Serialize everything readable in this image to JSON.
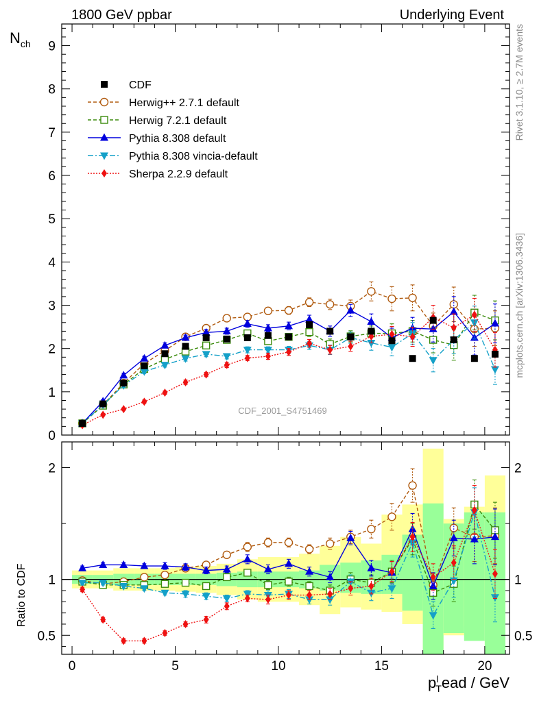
{
  "header": {
    "left": "1800 GeV ppbar",
    "right": "Underlying Event"
  },
  "side_labels": {
    "rivet": "Rivet 3.1.10, ≥ 2.7M events",
    "mcplots": "mcplots.cern.ch [arXiv:1306.3436]"
  },
  "watermark": "CDF_2001_S4751469",
  "colors": {
    "herwigpp": "#b05a0e",
    "herwig7": "#3a8a0a",
    "pythia": "#0000dd",
    "vincia": "#14a0c8",
    "sherpa": "#ee1111",
    "band_yellow": "#ffff99",
    "band_green": "#99ff99"
  },
  "chart_data": [
    {
      "type": "scatter",
      "panel": "main",
      "ylabel_main": "N",
      "ylabel_sub": "ch",
      "xlim": [
        -0.5,
        21.2
      ],
      "ylim": [
        0,
        9.5
      ],
      "yticks": [
        0,
        1,
        2,
        3,
        4,
        5,
        6,
        7,
        8,
        9
      ],
      "legend_placement": "top-left",
      "x": [
        0.5,
        1.5,
        2.5,
        3.5,
        4.5,
        5.5,
        6.5,
        7.5,
        8.5,
        9.5,
        10.5,
        11.5,
        12.5,
        13.5,
        14.5,
        15.5,
        16.5,
        17.5,
        18.5,
        19.5,
        20.5
      ],
      "series": [
        {
          "key": "cdf",
          "name": "CDF",
          "values": [
            0.27,
            0.72,
            1.2,
            1.6,
            1.88,
            2.05,
            2.25,
            2.22,
            2.25,
            2.3,
            2.27,
            2.55,
            2.4,
            2.27,
            2.4,
            2.18,
            1.77,
            2.65,
            2.2,
            1.77,
            1.87
          ]
        },
        {
          "key": "herwigpp",
          "name": "Herwig++ 2.7.1 default",
          "values": [
            0.27,
            0.7,
            1.2,
            1.65,
            1.95,
            2.27,
            2.47,
            2.7,
            2.73,
            2.87,
            2.88,
            3.07,
            3.02,
            2.98,
            3.32,
            3.15,
            3.17,
            2.52,
            3.02,
            2.45,
            2.47
          ],
          "errors": [
            0.03,
            0.04,
            0.05,
            0.05,
            0.06,
            0.06,
            0.07,
            0.07,
            0.08,
            0.08,
            0.09,
            0.1,
            0.12,
            0.14,
            0.22,
            0.28,
            0.3,
            0.3,
            0.4,
            0.4,
            0.4
          ]
        },
        {
          "key": "herwig7",
          "name": "Herwig 7.2.1 default",
          "values": [
            0.27,
            0.68,
            1.17,
            1.53,
            1.75,
            1.93,
            2.07,
            2.2,
            2.35,
            2.17,
            2.27,
            2.38,
            2.1,
            2.28,
            2.35,
            2.35,
            2.4,
            2.2,
            2.08,
            2.83,
            2.65
          ],
          "errors": [
            0.03,
            0.04,
            0.05,
            0.05,
            0.05,
            0.06,
            0.06,
            0.07,
            0.07,
            0.08,
            0.08,
            0.1,
            0.12,
            0.13,
            0.17,
            0.22,
            0.25,
            0.3,
            0.35,
            0.4,
            0.45
          ]
        },
        {
          "key": "pythia",
          "name": "Pythia 8.308 default",
          "values": [
            0.27,
            0.78,
            1.38,
            1.77,
            2.07,
            2.25,
            2.37,
            2.4,
            2.57,
            2.47,
            2.52,
            2.67,
            2.4,
            2.88,
            2.62,
            2.25,
            2.47,
            2.45,
            2.85,
            2.25,
            2.58
          ],
          "errors": [
            0.03,
            0.04,
            0.05,
            0.05,
            0.06,
            0.06,
            0.07,
            0.07,
            0.08,
            0.08,
            0.09,
            0.1,
            0.12,
            0.14,
            0.18,
            0.22,
            0.25,
            0.3,
            0.35,
            0.4,
            0.45
          ]
        },
        {
          "key": "vincia",
          "name": "Pythia 8.308 vincia-default",
          "values": [
            0.27,
            0.7,
            1.15,
            1.47,
            1.62,
            1.77,
            1.87,
            1.82,
            1.97,
            1.97,
            1.97,
            2.07,
            1.97,
            2.25,
            2.13,
            2.03,
            2.35,
            1.73,
            2.2,
            2.6,
            1.52
          ],
          "errors": [
            0.03,
            0.04,
            0.05,
            0.05,
            0.05,
            0.06,
            0.06,
            0.06,
            0.07,
            0.07,
            0.08,
            0.09,
            0.11,
            0.13,
            0.17,
            0.2,
            0.25,
            0.27,
            0.32,
            0.38,
            0.35
          ]
        },
        {
          "key": "sherpa",
          "name": "Sherpa 2.2.9 default",
          "values": [
            0.23,
            0.47,
            0.6,
            0.77,
            0.98,
            1.22,
            1.4,
            1.62,
            1.78,
            1.82,
            1.92,
            2.12,
            1.97,
            2.05,
            2.28,
            2.33,
            2.27,
            2.72,
            2.48,
            2.78,
            1.97
          ],
          "errors": [
            0.02,
            0.03,
            0.03,
            0.04,
            0.04,
            0.05,
            0.05,
            0.06,
            0.06,
            0.07,
            0.08,
            0.09,
            0.1,
            0.12,
            0.15,
            0.18,
            0.22,
            0.28,
            0.32,
            0.38,
            0.4
          ]
        }
      ]
    },
    {
      "type": "scatter",
      "panel": "ratio",
      "ylabel": "Ratio to CDF",
      "xlabel_p": "p",
      "xlabel_sub": "T",
      "xlabel_sup": "l",
      "xlabel_rest": "ead / GeV",
      "xlim": [
        -0.5,
        21.2
      ],
      "ylim": [
        0.33,
        2.23
      ],
      "yticks": [
        0.5,
        1,
        2
      ],
      "xticks": [
        0,
        5,
        10,
        15,
        20
      ],
      "x": [
        0.5,
        1.5,
        2.5,
        3.5,
        4.5,
        5.5,
        6.5,
        7.5,
        8.5,
        9.5,
        10.5,
        11.5,
        12.5,
        13.5,
        14.5,
        15.5,
        16.5,
        17.5,
        18.5,
        19.5,
        20.5
      ],
      "band_green": [
        [
          0.96,
          1.04
        ],
        [
          0.96,
          1.04
        ],
        [
          0.95,
          1.05
        ],
        [
          0.95,
          1.05
        ],
        [
          0.95,
          1.05
        ],
        [
          0.95,
          1.05
        ],
        [
          0.95,
          1.05
        ],
        [
          0.94,
          1.06
        ],
        [
          0.93,
          1.07
        ],
        [
          0.93,
          1.07
        ],
        [
          0.93,
          1.07
        ],
        [
          0.92,
          1.08
        ],
        [
          0.9,
          1.13
        ],
        [
          0.88,
          1.15
        ],
        [
          0.87,
          1.17
        ],
        [
          0.87,
          1.22
        ],
        [
          0.72,
          1.4
        ],
        [
          0.33,
          1.68
        ],
        [
          0.52,
          1.5
        ],
        [
          0.45,
          1.6
        ],
        [
          0.33,
          1.6
        ]
      ],
      "band_yellow": [
        [
          0.92,
          1.08
        ],
        [
          0.92,
          1.08
        ],
        [
          0.9,
          1.1
        ],
        [
          0.9,
          1.1
        ],
        [
          0.9,
          1.1
        ],
        [
          0.89,
          1.11
        ],
        [
          0.88,
          1.12
        ],
        [
          0.86,
          1.14
        ],
        [
          0.82,
          1.18
        ],
        [
          0.8,
          1.2
        ],
        [
          0.8,
          1.2
        ],
        [
          0.77,
          1.23
        ],
        [
          0.69,
          1.3
        ],
        [
          0.75,
          1.38
        ],
        [
          0.73,
          1.32
        ],
        [
          0.71,
          1.58
        ],
        [
          0.6,
          1.67
        ],
        [
          0.33,
          2.17
        ],
        [
          0.5,
          1.54
        ],
        [
          0.58,
          1.65
        ],
        [
          0.33,
          1.93
        ]
      ],
      "series": [
        {
          "key": "herwigpp",
          "values": [
            0.99,
            0.96,
            0.98,
            1.02,
            1.04,
            1.1,
            1.13,
            1.22,
            1.29,
            1.33,
            1.33,
            1.27,
            1.32,
            1.38,
            1.45,
            1.56,
            1.84,
            0.95,
            1.46,
            1.38,
            1.39
          ],
          "errors": [
            0.02,
            0.02,
            0.02,
            0.02,
            0.03,
            0.03,
            0.03,
            0.03,
            0.04,
            0.04,
            0.04,
            0.04,
            0.05,
            0.06,
            0.08,
            0.12,
            0.15,
            0.1,
            0.18,
            0.22,
            0.25
          ]
        },
        {
          "key": "herwig7",
          "values": [
            0.98,
            0.95,
            0.95,
            0.95,
            0.96,
            0.97,
            0.94,
            1.02,
            1.06,
            0.95,
            0.98,
            0.94,
            0.9,
            1.0,
            0.97,
            1.07,
            1.36,
            0.88,
            0.96,
            1.67,
            1.44
          ],
          "errors": [
            0.02,
            0.02,
            0.02,
            0.02,
            0.02,
            0.03,
            0.03,
            0.03,
            0.03,
            0.04,
            0.04,
            0.04,
            0.05,
            0.06,
            0.07,
            0.1,
            0.14,
            0.12,
            0.16,
            0.22,
            0.25
          ]
        },
        {
          "key": "pythia",
          "values": [
            1.1,
            1.13,
            1.13,
            1.12,
            1.12,
            1.11,
            1.08,
            1.09,
            1.18,
            1.09,
            1.14,
            1.07,
            1.02,
            1.37,
            1.1,
            1.06,
            1.45,
            0.94,
            1.37,
            1.36,
            1.38
          ],
          "errors": [
            0.02,
            0.02,
            0.02,
            0.02,
            0.03,
            0.03,
            0.03,
            0.03,
            0.04,
            0.04,
            0.04,
            0.04,
            0.05,
            0.06,
            0.07,
            0.1,
            0.14,
            0.12,
            0.16,
            0.22,
            0.25
          ]
        },
        {
          "key": "vincia",
          "values": [
            0.97,
            0.97,
            0.94,
            0.92,
            0.88,
            0.87,
            0.85,
            0.83,
            0.87,
            0.86,
            0.87,
            0.82,
            0.82,
            0.98,
            0.88,
            0.92,
            1.33,
            0.68,
            0.99,
            1.6,
            0.84
          ],
          "errors": [
            0.02,
            0.02,
            0.02,
            0.02,
            0.02,
            0.03,
            0.03,
            0.03,
            0.03,
            0.04,
            0.04,
            0.04,
            0.05,
            0.06,
            0.07,
            0.09,
            0.13,
            0.12,
            0.15,
            0.22,
            0.22
          ]
        },
        {
          "key": "sherpa",
          "values": [
            0.91,
            0.64,
            0.45,
            0.45,
            0.52,
            0.6,
            0.64,
            0.76,
            0.83,
            0.82,
            0.86,
            0.86,
            0.87,
            0.92,
            0.94,
            1.07,
            1.38,
            1.02,
            1.15,
            1.62,
            1.05
          ],
          "errors": [
            0.02,
            0.02,
            0.02,
            0.02,
            0.02,
            0.02,
            0.03,
            0.03,
            0.03,
            0.04,
            0.04,
            0.04,
            0.05,
            0.06,
            0.07,
            0.09,
            0.13,
            0.12,
            0.15,
            0.22,
            0.22
          ]
        }
      ]
    }
  ]
}
